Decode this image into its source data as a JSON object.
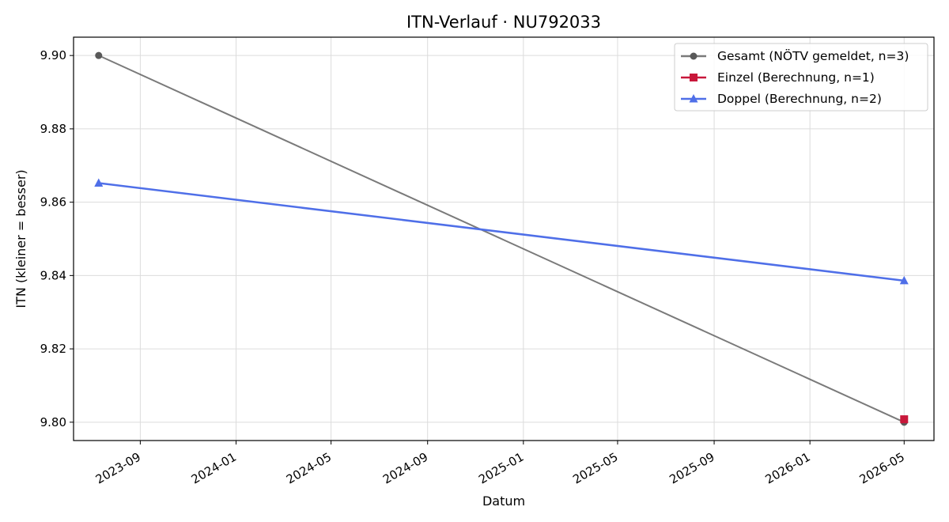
{
  "chart_data": {
    "type": "line",
    "title": "ITN-Verlauf · NU792033",
    "xlabel": "Datum",
    "ylabel": "ITN  (kleiner = besser)",
    "xlim": [
      "2023-06-08",
      "2026-06-08"
    ],
    "ylim": [
      9.795,
      9.905
    ],
    "x_ticks": [
      "2023-09",
      "2024-01",
      "2024-05",
      "2024-09",
      "2025-01",
      "2025-05",
      "2025-09",
      "2026-01",
      "2026-05"
    ],
    "x_tick_dates": [
      "2023-09-01",
      "2024-01-01",
      "2024-05-01",
      "2024-09-01",
      "2025-01-01",
      "2025-05-01",
      "2025-09-01",
      "2026-01-01",
      "2026-05-01"
    ],
    "y_ticks": [
      9.8,
      9.82,
      9.84,
      9.86,
      9.88,
      9.9
    ],
    "y_tick_labels": [
      "9.80",
      "9.82",
      "9.84",
      "9.86",
      "9.88",
      "9.90"
    ],
    "grid": true,
    "legend_position": "top-right",
    "series": [
      {
        "name": "Gesamt (NÖTV gemeldet, n=3)",
        "color": "#595959",
        "marker": "circle",
        "x": [
          "2023-07-10",
          "2026-05-01"
        ],
        "y": [
          9.9,
          9.8
        ]
      },
      {
        "name": "Einzel (Berechnung, n=1)",
        "color": "#c8173a",
        "marker": "square",
        "x": [
          "2026-05-01"
        ],
        "y": [
          9.8008
        ]
      },
      {
        "name": "Doppel (Berechnung, n=2)",
        "color": "#4f6fe8",
        "marker": "triangle",
        "x": [
          "2023-07-10",
          "2026-05-01"
        ],
        "y": [
          9.8652,
          9.8386
        ]
      }
    ]
  }
}
